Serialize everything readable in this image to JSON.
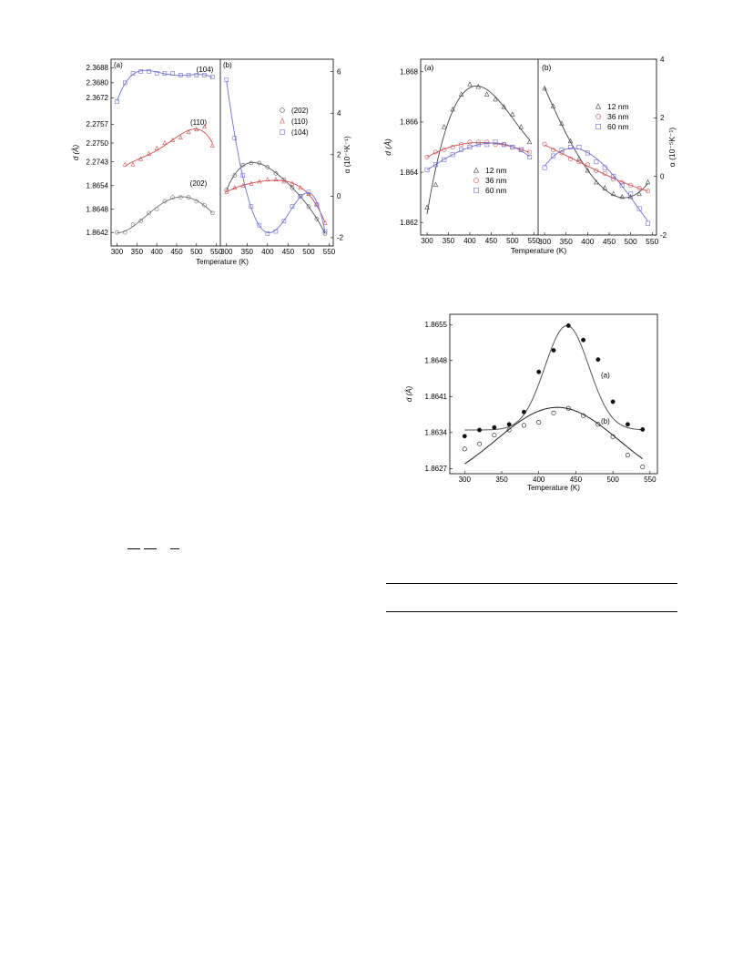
{
  "chart_data": [
    {
      "id": "fig1",
      "type": "scatter",
      "xlabel": "Temperature (K)",
      "xlim": [
        285,
        560
      ],
      "xticks": [
        300,
        350,
        400,
        450,
        500,
        550
      ],
      "panels": [
        {
          "label": "(a)",
          "ylabel": "d (Å)",
          "sub_plots": [
            {
              "name": "(104)",
              "color": "#7070d0",
              "marker": "square",
              "ylim": [
                2.36645,
                2.36915
              ],
              "yticks": [
                2.3672,
                2.368,
                2.3688
              ],
              "ytick_labels": [
                "2.3672",
                "2.3680",
                "2.3688"
              ],
              "x": [
                300,
                320,
                340,
                360,
                380,
                400,
                420,
                440,
                460,
                480,
                500,
                520,
                540
              ],
              "y": [
                2.367,
                2.368,
                2.3685,
                2.3686,
                2.3686,
                2.3685,
                2.3685,
                2.3685,
                2.3684,
                2.3684,
                2.3684,
                2.3684,
                2.3683
              ]
            },
            {
              "name": "(110)",
              "color": "#d05050",
              "marker": "triangle",
              "ylim": [
                2.27385,
                2.27615
              ],
              "yticks": [
                2.2743,
                2.275,
                2.2757
              ],
              "ytick_labels": [
                "2.2743",
                "2.2750",
                "2.2757"
              ],
              "x": [
                320,
                340,
                360,
                380,
                400,
                420,
                440,
                460,
                480,
                500,
                520,
                540
              ],
              "y": [
                2.2742,
                2.2742,
                2.2744,
                2.2746,
                2.2748,
                2.275,
                2.2751,
                2.2752,
                2.2754,
                2.2755,
                2.2756,
                2.2749
              ]
            },
            {
              "name": "(202)",
              "color": "#707070",
              "marker": "circle",
              "ylim": [
                1.8639,
                1.8657
              ],
              "yticks": [
                1.8642,
                1.8648,
                1.8654
              ],
              "ytick_labels": [
                "1.8642",
                "1.8648",
                "1.8654"
              ],
              "x": [
                300,
                320,
                340,
                360,
                380,
                400,
                420,
                440,
                460,
                480,
                500,
                520,
                540
              ],
              "y": [
                1.8642,
                1.8642,
                1.8644,
                1.8645,
                1.8647,
                1.8648,
                1.865,
                1.8651,
                1.8651,
                1.8651,
                1.865,
                1.8649,
                1.8647
              ]
            }
          ]
        },
        {
          "label": "(b)",
          "ylabel": "α (10⁻⁵K⁻¹)",
          "ylim": [
            -2.4,
            6.6
          ],
          "yticks": [
            -2,
            0,
            2,
            4,
            6
          ],
          "legend": "top-right",
          "series": [
            {
              "name": "(202)",
              "color": "#555555",
              "marker": "circle",
              "x": [
                300,
                320,
                340,
                360,
                380,
                400,
                420,
                440,
                460,
                480,
                500,
                520,
                540
              ],
              "y": [
                0.3,
                1.0,
                1.5,
                1.6,
                1.6,
                1.4,
                1.1,
                0.8,
                0.4,
                0.0,
                -0.5,
                -1.1,
                -1.8
              ]
            },
            {
              "name": "(110)",
              "color": "#d05050",
              "marker": "triangle",
              "x": [
                300,
                320,
                340,
                360,
                380,
                400,
                420,
                440,
                460,
                480,
                500,
                520,
                540
              ],
              "y": [
                0.2,
                0.4,
                0.5,
                0.6,
                0.7,
                0.8,
                0.8,
                0.7,
                0.6,
                0.4,
                0.1,
                -0.4,
                -1.3
              ]
            },
            {
              "name": "(104)",
              "color": "#7070d0",
              "marker": "square",
              "x": [
                300,
                320,
                340,
                360,
                380,
                400,
                420,
                440,
                460,
                480,
                500,
                520,
                540
              ],
              "y": [
                5.6,
                2.8,
                1.0,
                -0.5,
                -1.4,
                -1.8,
                -1.7,
                -1.2,
                -0.5,
                0.0,
                0.2,
                -0.4,
                -1.7
              ]
            }
          ]
        }
      ]
    },
    {
      "id": "fig2",
      "type": "scatter",
      "xlabel": "Temperature (K)",
      "xlim": [
        285,
        560
      ],
      "xticks": [
        300,
        350,
        400,
        450,
        500,
        550
      ],
      "panels": [
        {
          "label": "(a)",
          "ylabel": "d (Å)",
          "ylim": [
            1.8615,
            1.8685
          ],
          "yticks": [
            1.862,
            1.864,
            1.866,
            1.868
          ],
          "ytick_labels": [
            "1.862",
            "1.864",
            "1.866",
            "1.868"
          ],
          "legend": "bottom-center",
          "series": [
            {
              "name": "12 nm",
              "color": "#444444",
              "marker": "triangle",
              "x": [
                300,
                320,
                340,
                360,
                380,
                400,
                420,
                440,
                460,
                480,
                500,
                520,
                540
              ],
              "y": [
                1.8626,
                1.8635,
                1.8658,
                1.8665,
                1.8671,
                1.8675,
                1.8674,
                1.8671,
                1.8669,
                1.8666,
                1.8663,
                1.8658,
                1.8652
              ]
            },
            {
              "name": "36 nm",
              "color": "#d05050",
              "marker": "circle",
              "x": [
                300,
                320,
                340,
                360,
                380,
                400,
                420,
                440,
                460,
                480,
                500,
                520,
                540
              ],
              "y": [
                1.8646,
                1.8648,
                1.8649,
                1.865,
                1.8651,
                1.8652,
                1.8652,
                1.8652,
                1.8651,
                1.8651,
                1.865,
                1.8649,
                1.8648
              ]
            },
            {
              "name": "60 nm",
              "color": "#7070d0",
              "marker": "square",
              "x": [
                300,
                320,
                340,
                360,
                380,
                400,
                420,
                440,
                460,
                480,
                500,
                520,
                540
              ],
              "y": [
                1.8641,
                1.8643,
                1.8645,
                1.8647,
                1.8649,
                1.865,
                1.8651,
                1.8651,
                1.8652,
                1.8651,
                1.865,
                1.8649,
                1.8646
              ]
            }
          ]
        },
        {
          "label": "(b)",
          "ylabel": "α (10⁻⁵K⁻¹)",
          "ylim": [
            -2,
            4
          ],
          "yticks": [
            -2,
            0,
            2,
            4
          ],
          "legend": "top-right",
          "series": [
            {
              "name": "12 nm",
              "color": "#444444",
              "marker": "triangle",
              "x": [
                300,
                320,
                340,
                360,
                380,
                400,
                420,
                440,
                460,
                480,
                500,
                520,
                540
              ],
              "y": [
                3.0,
                2.4,
                1.8,
                1.2,
                0.6,
                0.2,
                -0.2,
                -0.4,
                -0.6,
                -0.7,
                -0.7,
                -0.6,
                -0.2
              ]
            },
            {
              "name": "36 nm",
              "color": "#d05050",
              "marker": "circle",
              "x": [
                300,
                320,
                340,
                360,
                380,
                400,
                420,
                440,
                460,
                480,
                500,
                520,
                540
              ],
              "y": [
                1.1,
                0.9,
                0.8,
                0.6,
                0.5,
                0.4,
                0.2,
                0.1,
                -0.1,
                -0.2,
                -0.3,
                -0.4,
                -0.5
              ]
            },
            {
              "name": "60 nm",
              "color": "#7070d0",
              "marker": "square",
              "x": [
                300,
                320,
                340,
                360,
                380,
                400,
                420,
                440,
                460,
                480,
                500,
                520,
                540
              ],
              "y": [
                0.3,
                0.7,
                0.9,
                1.0,
                1.0,
                0.8,
                0.5,
                0.3,
                0.0,
                -0.3,
                -0.6,
                -1.1,
                -1.6
              ]
            }
          ]
        }
      ]
    },
    {
      "id": "fig3",
      "type": "scatter",
      "xlabel": "Temperature (K)",
      "ylabel": "d (Å)",
      "xlim": [
        280,
        560
      ],
      "xticks": [
        300,
        350,
        400,
        450,
        500,
        550
      ],
      "ylim": [
        1.8626,
        1.8657
      ],
      "yticks": [
        1.8627,
        1.8634,
        1.8641,
        1.8648,
        1.8655
      ],
      "ytick_labels": [
        "1.8627",
        "1.8634",
        "1.8641",
        "1.8648",
        "1.8655"
      ],
      "series": [
        {
          "name": "(a)",
          "color": "#111111",
          "marker": "filled-circle",
          "x": [
            300,
            320,
            340,
            360,
            380,
            400,
            420,
            440,
            460,
            480,
            500,
            520,
            540
          ],
          "y": [
            1.86333,
            1.86345,
            1.8635,
            1.86356,
            1.8638,
            1.86458,
            1.865,
            1.86548,
            1.8652,
            1.86482,
            1.864,
            1.86356,
            1.86346
          ]
        },
        {
          "name": "(b)",
          "color": "#111111",
          "marker": "open-circle",
          "x": [
            300,
            320,
            340,
            360,
            380,
            400,
            420,
            440,
            460,
            480,
            500,
            520,
            540
          ],
          "y": [
            1.86308,
            1.86318,
            1.86335,
            1.86345,
            1.86354,
            1.8636,
            1.86378,
            1.86387,
            1.86373,
            1.86356,
            1.86332,
            1.86296,
            1.86273
          ]
        }
      ]
    }
  ]
}
